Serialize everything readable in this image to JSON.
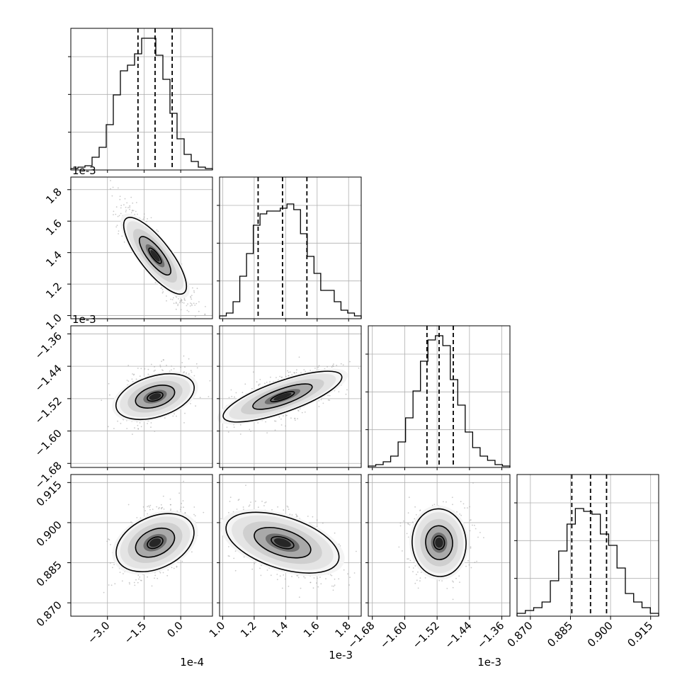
{
  "chart_data": {
    "type": "corner",
    "parameters": [
      {
        "multiplier": "1e-4",
        "ticks": [
          "−3.0",
          "−1.5",
          "0.0"
        ],
        "tick_values": [
          -3.0,
          -1.5,
          0.0
        ],
        "range": [
          -4.5,
          1.3
        ],
        "quantiles": [
          -1.75,
          -1.05,
          -0.35
        ],
        "histogram": [
          0.01,
          0.02,
          0.03,
          0.09,
          0.16,
          0.32,
          0.53,
          0.7,
          0.74,
          0.82,
          0.93,
          0.93,
          0.81,
          0.64,
          0.4,
          0.22,
          0.11,
          0.06,
          0.02,
          0.01
        ]
      },
      {
        "multiplier": "1e-3",
        "ticks": [
          "1.0",
          "1.2",
          "1.4",
          "1.6",
          "1.8"
        ],
        "tick_values": [
          1.0,
          1.2,
          1.4,
          1.6,
          1.8
        ],
        "range": [
          0.98,
          1.88
        ],
        "quantiles": [
          1.225,
          1.38,
          1.535
        ],
        "histogram": [
          0.02,
          0.04,
          0.12,
          0.3,
          0.46,
          0.66,
          0.74,
          0.76,
          0.76,
          0.78,
          0.81,
          0.77,
          0.6,
          0.44,
          0.32,
          0.2,
          0.2,
          0.12,
          0.06,
          0.04,
          0.02
        ]
      },
      {
        "multiplier": "1e-3",
        "ticks": [
          "−1.68",
          "−1.60",
          "−1.52",
          "−1.44",
          "−1.36"
        ],
        "tick_values": [
          -1.68,
          -1.6,
          -1.52,
          -1.44,
          -1.36
        ],
        "range": [
          -1.69,
          -1.34
        ],
        "quantiles": [
          -1.545,
          -1.515,
          -1.48
        ],
        "histogram": [
          0.01,
          0.02,
          0.04,
          0.08,
          0.18,
          0.35,
          0.54,
          0.75,
          0.9,
          0.93,
          0.86,
          0.62,
          0.44,
          0.25,
          0.14,
          0.08,
          0.05,
          0.02,
          0.01
        ]
      },
      {
        "multiplier": "",
        "ticks": [
          "0.870",
          "0.885",
          "0.900",
          "0.915"
        ],
        "tick_values": [
          0.87,
          0.885,
          0.9,
          0.915
        ],
        "range": [
          0.865,
          0.918
        ],
        "quantiles": [
          0.8855,
          0.8925,
          0.8985
        ],
        "histogram": [
          0.02,
          0.04,
          0.06,
          0.1,
          0.25,
          0.46,
          0.65,
          0.76,
          0.74,
          0.72,
          0.58,
          0.5,
          0.34,
          0.16,
          0.1,
          0.06,
          0.02
        ]
      }
    ],
    "correlations": [
      [
        1.0,
        -0.9,
        0.4,
        0.45
      ],
      [
        -0.9,
        1.0,
        0.65,
        -0.45
      ],
      [
        0.4,
        0.65,
        1.0,
        0.05
      ],
      [
        0.45,
        -0.45,
        0.05,
        1.0
      ]
    ],
    "contour_levels": [
      0.4,
      1.0,
      2.0
    ],
    "grid": true,
    "colors": {
      "hist": "#000000",
      "quantile": "#000000",
      "contour": "#000000",
      "sample": "#9e9e9e"
    }
  }
}
